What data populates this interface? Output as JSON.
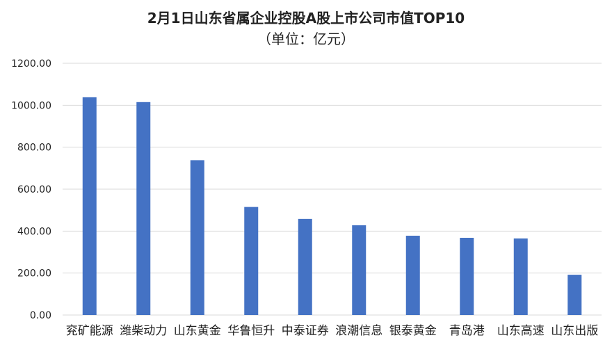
{
  "chart_data": {
    "type": "bar",
    "title": "2月1日山东省属企业控股A股上市公司市值TOP10",
    "subtitle": "（单位：亿元）",
    "categories": [
      "兖矿能源",
      "潍柴动力",
      "山东黄金",
      "华鲁恒升",
      "中泰证券",
      "浪潮信息",
      "银泰黄金",
      "青岛港",
      "山东高速",
      "山东出版"
    ],
    "values": [
      1038,
      1015,
      738,
      515,
      458,
      428,
      378,
      368,
      365,
      192
    ],
    "ylim": [
      0,
      1200
    ],
    "yticks": [
      "0.00",
      "200.00",
      "400.00",
      "600.00",
      "800.00",
      "1000.00",
      "1200.00"
    ],
    "xlabel": "",
    "ylabel": "",
    "grid": true,
    "legend": "none",
    "bar_color": "#4472C4",
    "grid_color": "#D9D9D9"
  }
}
